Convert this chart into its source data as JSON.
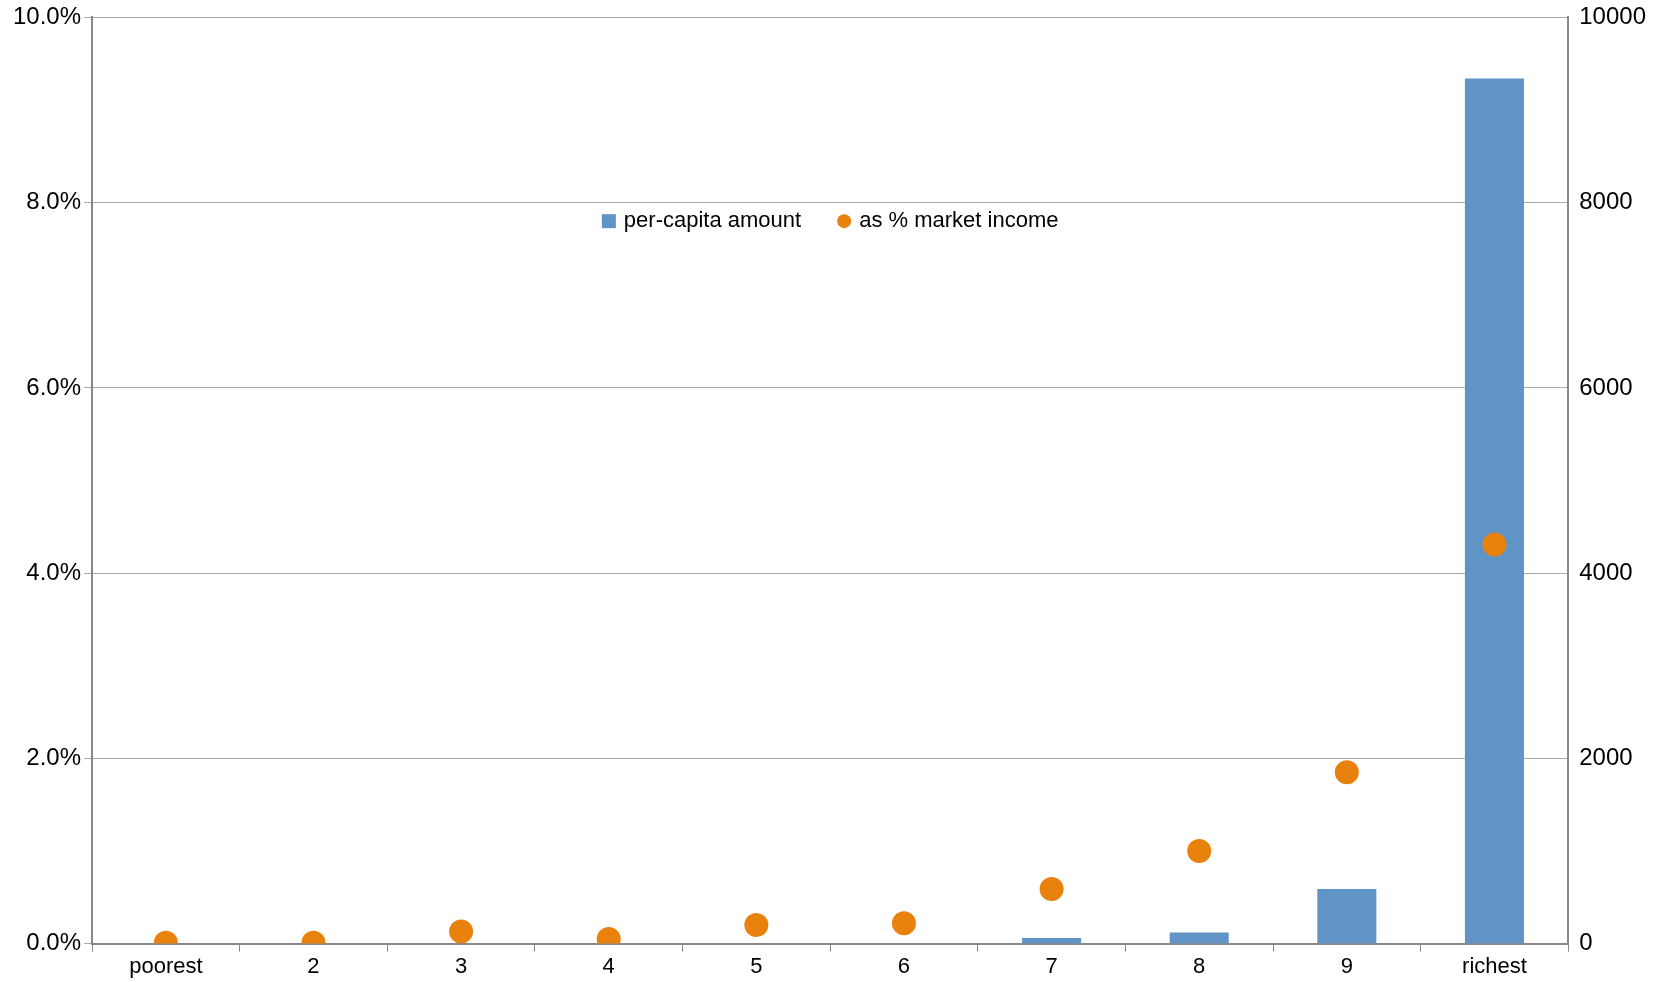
{
  "chart_data": {
    "type": "bar",
    "categories": [
      "poorest",
      "2",
      "3",
      "4",
      "5",
      "6",
      "7",
      "8",
      "9",
      "richest"
    ],
    "series": [
      {
        "name": "per-capita amount",
        "axis": "y2",
        "color": "#6094c6",
        "values": [
          0,
          0,
          null,
          null,
          null,
          null,
          60,
          120,
          590,
          9340
        ]
      },
      {
        "name": "as % market income",
        "type": "scatter",
        "axis": "y",
        "color": "#e8820c",
        "values": [
          0.01,
          0.01,
          0.13,
          0.05,
          0.2,
          0.22,
          0.59,
          1.0,
          1.85,
          4.31
        ]
      }
    ],
    "ylim": [
      0,
      10
    ],
    "yticks": [
      {
        "value": 0,
        "label": "0.0%"
      },
      {
        "value": 2,
        "label": "2.0%"
      },
      {
        "value": 4,
        "label": "4.0%"
      },
      {
        "value": 6,
        "label": "6.0%"
      },
      {
        "value": 8,
        "label": "8.0%"
      },
      {
        "value": 10,
        "label": "10.0%"
      }
    ],
    "y2lim": [
      0,
      10000
    ],
    "y2ticks": [
      0,
      2000,
      4000,
      6000,
      8000,
      10000
    ],
    "grid": "y",
    "legend": "top",
    "marker": "circle"
  }
}
